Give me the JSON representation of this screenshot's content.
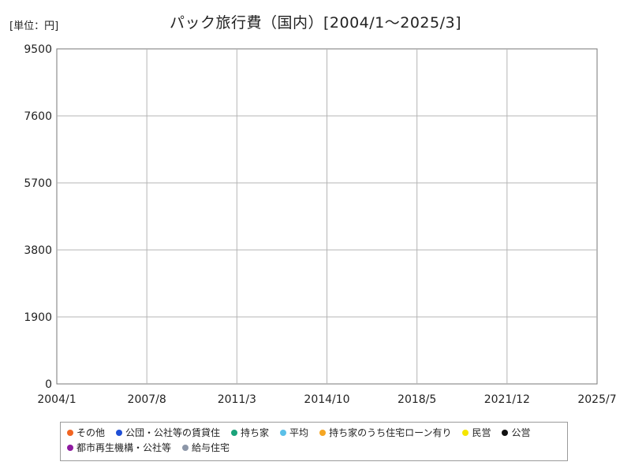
{
  "unit_label": "[単位：円]",
  "chart_data": {
    "type": "line",
    "title": "パック旅行費（国内）[2004/1～2025/3]",
    "xlabel": "",
    "ylabel": "",
    "ylim": [
      0,
      9500
    ],
    "yticks": [
      "0",
      "1900",
      "3800",
      "5700",
      "7600",
      "9500"
    ],
    "xticks": [
      "2004/1",
      "2007/8",
      "2011/3",
      "2014/10",
      "2018/5",
      "2021/12",
      "2025/7"
    ],
    "xrange": [
      "2004/1",
      "2025/7"
    ],
    "grid": true,
    "legend_position": "bottom",
    "series": [
      {
        "name": "その他",
        "color": "#f26522"
      },
      {
        "name": "公団・公社等の賃貸住",
        "color": "#1f4fd6"
      },
      {
        "name": "持ち家",
        "color": "#1aa37a"
      },
      {
        "name": "平均",
        "color": "#5bc0e8"
      },
      {
        "name": "持ち家のうち住宅ローン有り",
        "color": "#f5a623"
      },
      {
        "name": "民営",
        "color": "#f5e600"
      },
      {
        "name": "公営",
        "color": "#111111"
      },
      {
        "name": "都市再生機構・公社等",
        "color": "#8e1aa0"
      },
      {
        "name": "給与住宅",
        "color": "#8c96a8"
      }
    ]
  }
}
